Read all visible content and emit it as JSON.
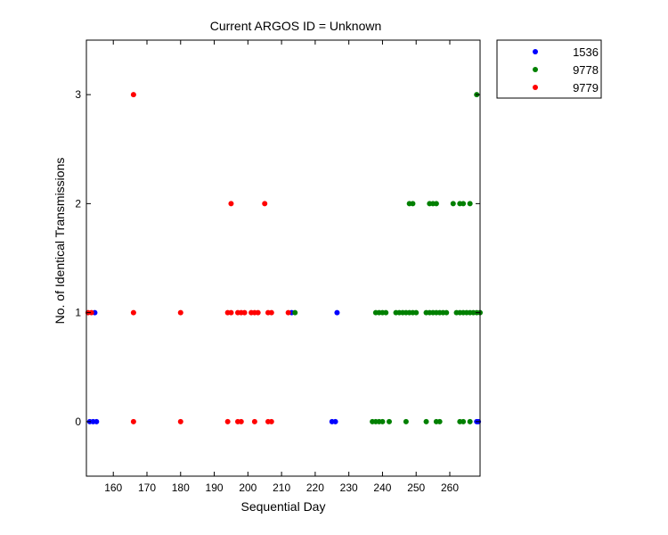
{
  "chart_data": {
    "type": "scatter",
    "title": "Current ARGOS ID = Unknown",
    "xlabel": "Sequential Day",
    "ylabel": "No. of Identical Transmissions",
    "xlim": [
      152,
      269
    ],
    "ylim": [
      -0.5,
      3.5
    ],
    "xticks": [
      160,
      170,
      180,
      190,
      200,
      210,
      220,
      230,
      240,
      250,
      260
    ],
    "yticks": [
      0,
      1,
      2,
      3
    ],
    "grid": false,
    "legend_position": "outside-top-right",
    "series": [
      {
        "name": "1536",
        "color": "#0000ff",
        "points": [
          [
            153,
            0
          ],
          [
            154,
            0
          ],
          [
            155,
            0
          ],
          [
            154.5,
            1
          ],
          [
            213,
            1
          ],
          [
            225,
            0
          ],
          [
            226,
            0
          ],
          [
            226.5,
            1
          ],
          [
            268,
            0
          ],
          [
            268.5,
            0
          ]
        ]
      },
      {
        "name": "9778",
        "color": "#008000",
        "points": [
          [
            214,
            1
          ],
          [
            237,
            0
          ],
          [
            238,
            0
          ],
          [
            239,
            0
          ],
          [
            240,
            0
          ],
          [
            242,
            0
          ],
          [
            247,
            0
          ],
          [
            253,
            0
          ],
          [
            256,
            0
          ],
          [
            257,
            0
          ],
          [
            263,
            0
          ],
          [
            264,
            0
          ],
          [
            266,
            0
          ],
          [
            238,
            1
          ],
          [
            239,
            1
          ],
          [
            240,
            1
          ],
          [
            241,
            1
          ],
          [
            244,
            1
          ],
          [
            245,
            1
          ],
          [
            246,
            1
          ],
          [
            247,
            1
          ],
          [
            248,
            1
          ],
          [
            249,
            1
          ],
          [
            250,
            1
          ],
          [
            253,
            1
          ],
          [
            254,
            1
          ],
          [
            255,
            1
          ],
          [
            256,
            1
          ],
          [
            257,
            1
          ],
          [
            258,
            1
          ],
          [
            259,
            1
          ],
          [
            262,
            1
          ],
          [
            263,
            1
          ],
          [
            264,
            1
          ],
          [
            265,
            1
          ],
          [
            266,
            1
          ],
          [
            267,
            1
          ],
          [
            268,
            1
          ],
          [
            269,
            1
          ],
          [
            248,
            2
          ],
          [
            249,
            2
          ],
          [
            254,
            2
          ],
          [
            255,
            2
          ],
          [
            256,
            2
          ],
          [
            261,
            2
          ],
          [
            263,
            2
          ],
          [
            264,
            2
          ],
          [
            266,
            2
          ],
          [
            268,
            3
          ]
        ]
      },
      {
        "name": "9779",
        "color": "#ff0000",
        "points": [
          [
            152.5,
            1
          ],
          [
            153.5,
            1
          ],
          [
            166,
            0
          ],
          [
            166,
            1
          ],
          [
            166,
            3
          ],
          [
            180,
            0
          ],
          [
            180,
            1
          ],
          [
            194,
            0
          ],
          [
            194,
            1
          ],
          [
            195,
            1
          ],
          [
            195,
            2
          ],
          [
            197,
            0
          ],
          [
            197,
            1
          ],
          [
            198,
            0
          ],
          [
            198,
            1
          ],
          [
            199,
            1
          ],
          [
            201,
            1
          ],
          [
            202,
            0
          ],
          [
            202,
            1
          ],
          [
            203,
            1
          ],
          [
            205,
            2
          ],
          [
            206,
            0
          ],
          [
            206,
            1
          ],
          [
            207,
            0
          ],
          [
            207,
            1
          ],
          [
            212,
            1
          ]
        ]
      }
    ]
  }
}
